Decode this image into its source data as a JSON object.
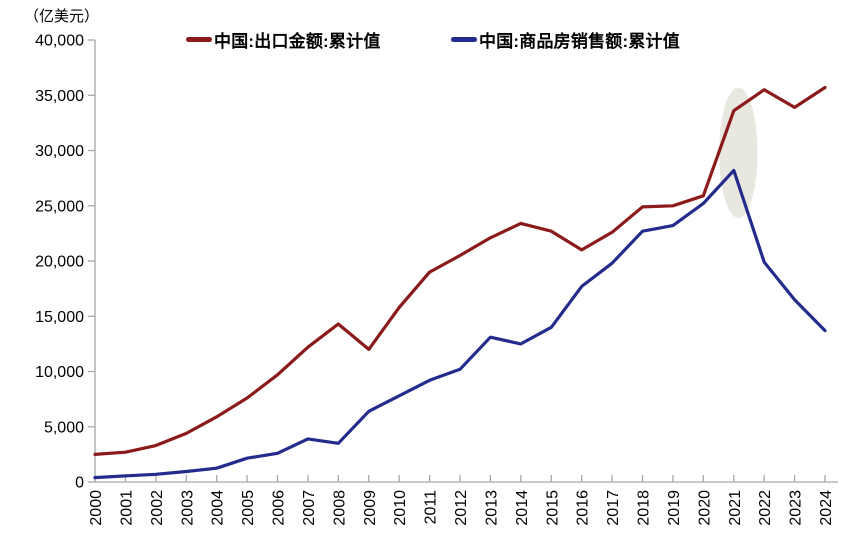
{
  "chart_data": {
    "type": "line",
    "ylabel": "（亿美元）",
    "x": [
      2000,
      2001,
      2002,
      2003,
      2004,
      2005,
      2006,
      2007,
      2008,
      2009,
      2010,
      2011,
      2012,
      2013,
      2014,
      2015,
      2016,
      2017,
      2018,
      2019,
      2020,
      2021,
      2022,
      2023,
      2024
    ],
    "ylim": [
      0,
      40000
    ],
    "ytick_step": 5000,
    "grid": false,
    "legend_position": "top",
    "series": [
      {
        "name": "中国:出口金额:累计值",
        "color": "#8B1A1A",
        "values": [
          2500,
          2700,
          3300,
          4400,
          5900,
          7600,
          9700,
          12200,
          14300,
          12000,
          15800,
          19000,
          20500,
          22100,
          23400,
          22700,
          21000,
          22600,
          24900,
          25000,
          25900,
          33600,
          35500,
          33900,
          35700
        ]
      },
      {
        "name": "中国:商品房销售额:累计值",
        "color": "#232C8C",
        "values": [
          400,
          550,
          700,
          950,
          1250,
          2150,
          2600,
          3900,
          3500,
          6400,
          7800,
          9200,
          10200,
          13100,
          12500,
          14000,
          17700,
          19800,
          22700,
          23200,
          25200,
          28200,
          19900,
          16500,
          13700
        ]
      }
    ],
    "annotation": {
      "type": "ellipse",
      "center_year": 2021.15,
      "center_value": 29800,
      "year_radius": 0.63,
      "value_radius": 5900,
      "fill": "#E8E8E0"
    }
  },
  "axis": {
    "color": "#A6A6A6",
    "label_color": "#000000"
  }
}
